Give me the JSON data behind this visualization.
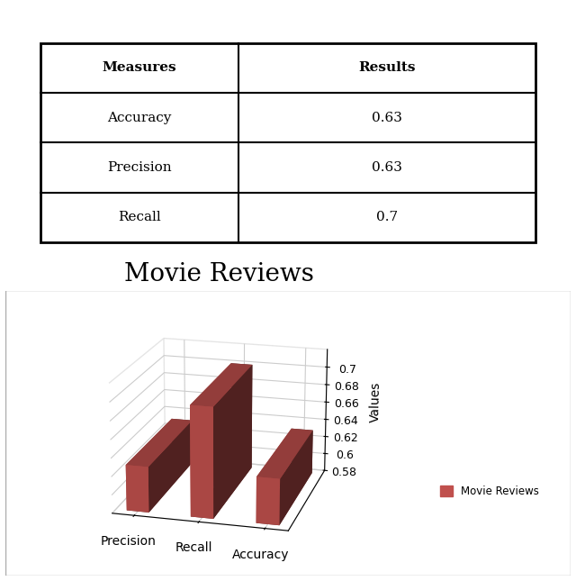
{
  "title": "Movie Reviews",
  "table_headers": [
    "Measures",
    "Results"
  ],
  "table_rows": [
    [
      "Accuracy",
      "0.63"
    ],
    [
      "Precision",
      "0.63"
    ],
    [
      "Recall",
      "0.7"
    ]
  ],
  "bar_categories": [
    "Precision",
    "Recall",
    "Accuracy"
  ],
  "bar_values": [
    0.63,
    0.7,
    0.63
  ],
  "bar_color": "#c0504d",
  "ylim_min": 0.58,
  "ylim_max": 0.72,
  "yticks": [
    0.58,
    0.6,
    0.62,
    0.64,
    0.66,
    0.68,
    0.7
  ],
  "ylabel": "Values",
  "legend_label": "Movie Reviews",
  "background_color": "#ffffff",
  "title_fontsize": 20,
  "axis_fontsize": 9,
  "label_fontsize": 10,
  "table_fontsize": 11,
  "elev": 18,
  "azim": -75
}
